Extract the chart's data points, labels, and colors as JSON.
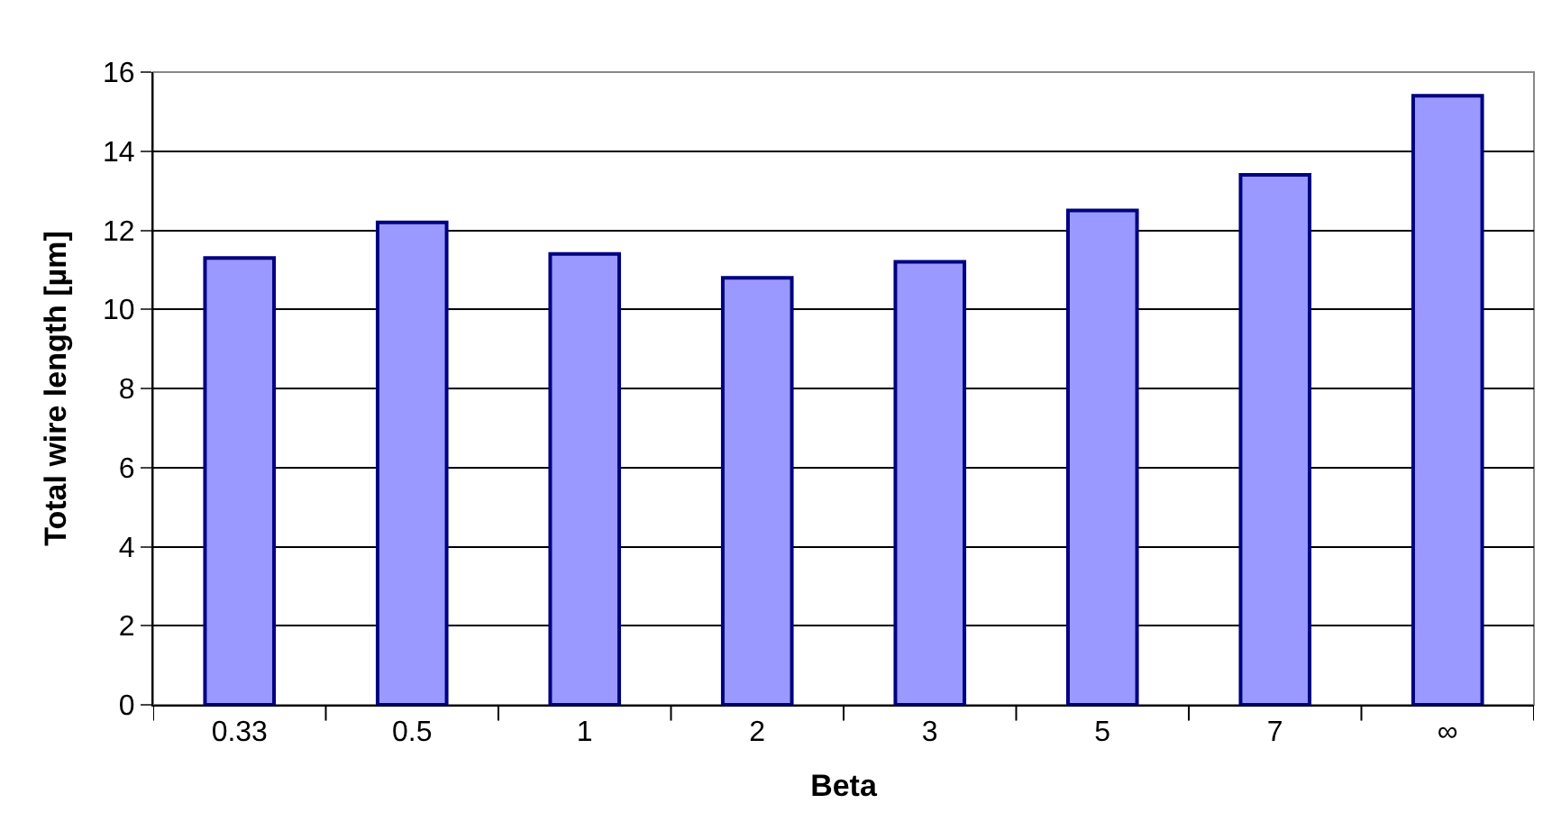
{
  "chart_data": {
    "type": "bar",
    "xlabel": "Beta",
    "ylabel": "Total wire length [µm]",
    "categories": [
      "0.33",
      "0.5",
      "1",
      "2",
      "3",
      "5",
      "7",
      "∞"
    ],
    "values": [
      11.3,
      12.2,
      11.4,
      10.8,
      11.2,
      12.5,
      13.4,
      15.4
    ],
    "color": "#9999ff",
    "ylim": [
      0,
      16
    ],
    "yticks": [
      0,
      2,
      4,
      6,
      8,
      10,
      12,
      14,
      16
    ],
    "grid": "y"
  }
}
